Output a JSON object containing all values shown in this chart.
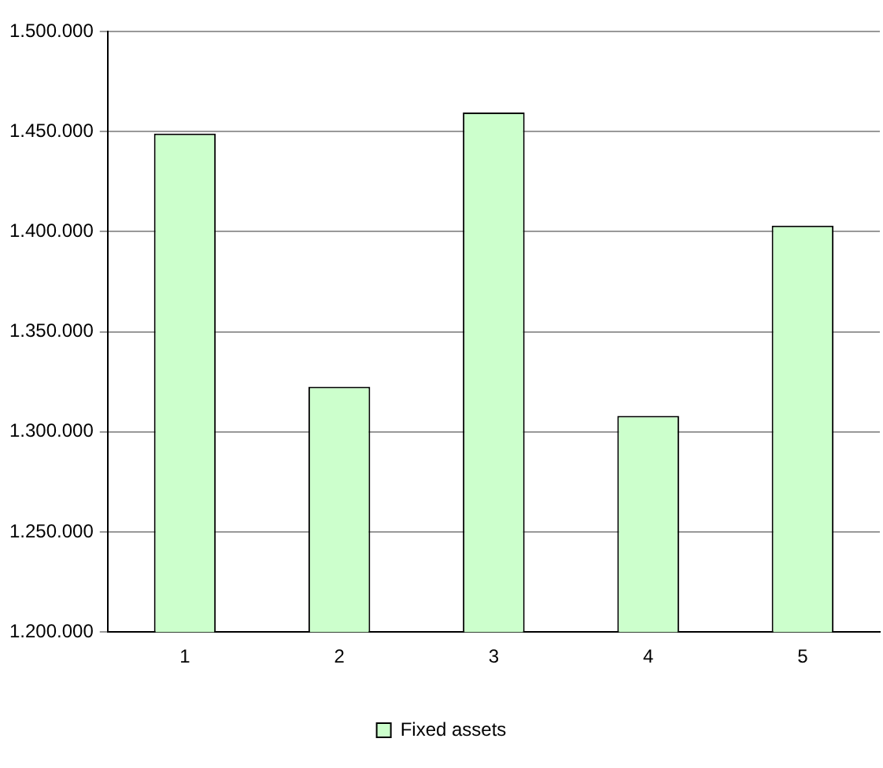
{
  "chart_data": {
    "type": "bar",
    "categories": [
      "1",
      "2",
      "3",
      "4",
      "5"
    ],
    "series": [
      {
        "name": "Fixed assets",
        "color": "#ccffcc",
        "values": [
          1449000,
          1322500,
          1459500,
          1308000,
          1403000
        ]
      }
    ],
    "ylim": [
      1200000,
      1500000
    ],
    "yticks": [
      {
        "value": 1200000,
        "label": "1.200.000"
      },
      {
        "value": 1250000,
        "label": "1.250.000"
      },
      {
        "value": 1300000,
        "label": "1.300.000"
      },
      {
        "value": 1350000,
        "label": "1.350.000"
      },
      {
        "value": 1400000,
        "label": "1.400.000"
      },
      {
        "value": 1450000,
        "label": "1.450.000"
      },
      {
        "value": 1500000,
        "label": "1.500.000"
      }
    ],
    "grid": "y",
    "legend": "bottom"
  }
}
